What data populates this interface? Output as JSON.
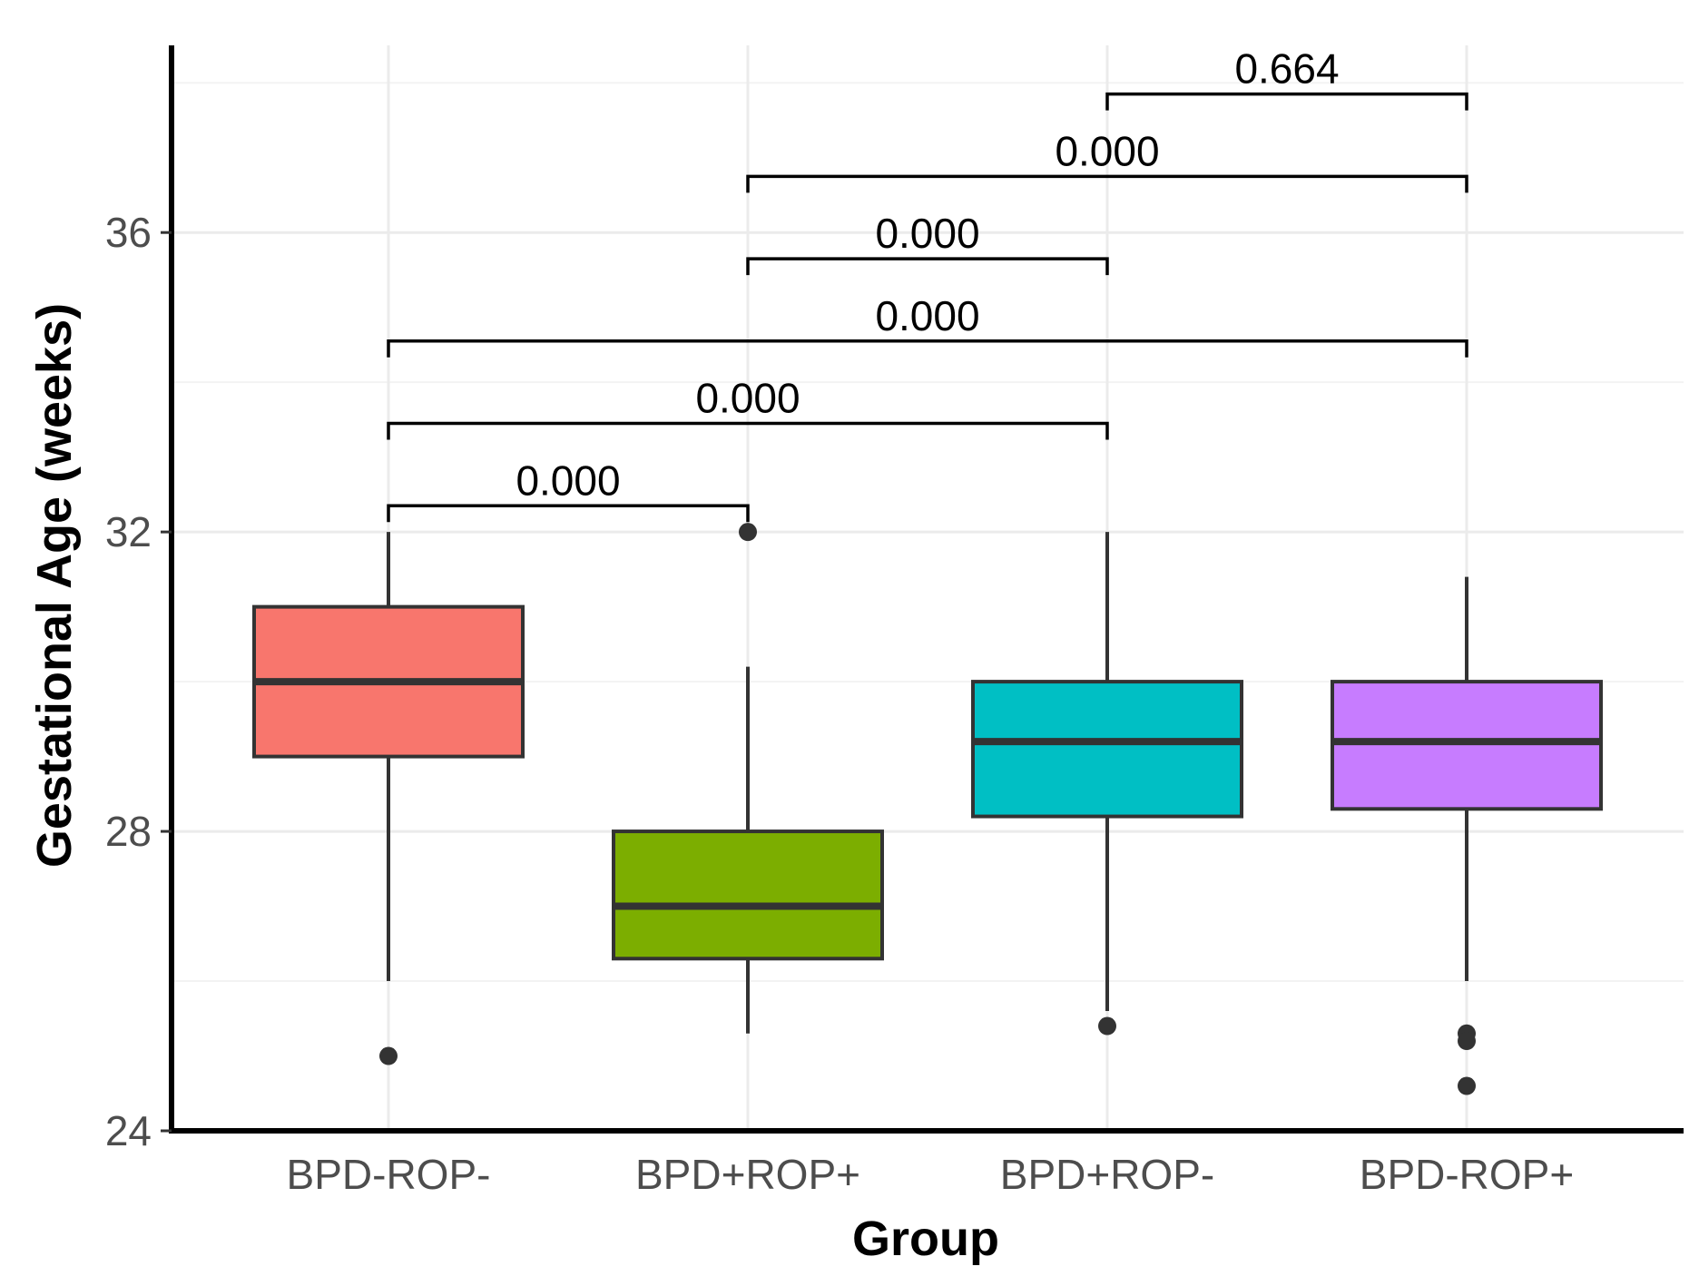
{
  "chart_data": {
    "type": "box",
    "title": "",
    "xlabel": "Group",
    "ylabel": "Gestational Age (weeks)",
    "ylim": [
      24,
      38.5
    ],
    "yticks": [
      24,
      28,
      32,
      36
    ],
    "ytick_labels": [
      "24",
      "28",
      "32",
      "36"
    ],
    "grid": true,
    "categories": [
      "BPD-ROP-",
      "BPD+ROP+",
      "BPD+ROP-",
      "BPD-ROP+"
    ],
    "boxes": [
      {
        "group": "BPD-ROP-",
        "whisker_low": 26.0,
        "q1": 29.0,
        "median": 30.0,
        "q3": 31.0,
        "whisker_high": 32.0,
        "outliers": [
          25.0
        ],
        "color": "#F8766D"
      },
      {
        "group": "BPD+ROP+",
        "whisker_low": 25.3,
        "q1": 26.3,
        "median": 27.0,
        "q3": 28.0,
        "whisker_high": 30.2,
        "outliers": [
          32.0
        ],
        "color": "#7CAE00"
      },
      {
        "group": "BPD+ROP-",
        "whisker_low": 25.6,
        "q1": 28.2,
        "median": 29.2,
        "q3": 30.0,
        "whisker_high": 32.0,
        "outliers": [
          25.4
        ],
        "color": "#00BFC4"
      },
      {
        "group": "BPD-ROP+",
        "whisker_low": 26.0,
        "q1": 28.3,
        "median": 29.2,
        "q3": 30.0,
        "whisker_high": 31.4,
        "outliers": [
          25.3,
          25.2,
          24.6
        ],
        "color": "#C77CFF"
      }
    ],
    "comparisons": [
      {
        "from": "BPD-ROP-",
        "to": "BPD+ROP+",
        "p": "0.000",
        "y": 32.35
      },
      {
        "from": "BPD-ROP-",
        "to": "BPD+ROP-",
        "p": "0.000",
        "y": 33.45
      },
      {
        "from": "BPD-ROP-",
        "to": "BPD-ROP+",
        "p": "0.000",
        "y": 34.55
      },
      {
        "from": "BPD+ROP+",
        "to": "BPD+ROP-",
        "p": "0.000",
        "y": 35.65
      },
      {
        "from": "BPD+ROP+",
        "to": "BPD-ROP+",
        "p": "0.000",
        "y": 36.75
      },
      {
        "from": "BPD+ROP-",
        "to": "BPD-ROP+",
        "p": "0.664",
        "y": 37.85
      }
    ]
  }
}
